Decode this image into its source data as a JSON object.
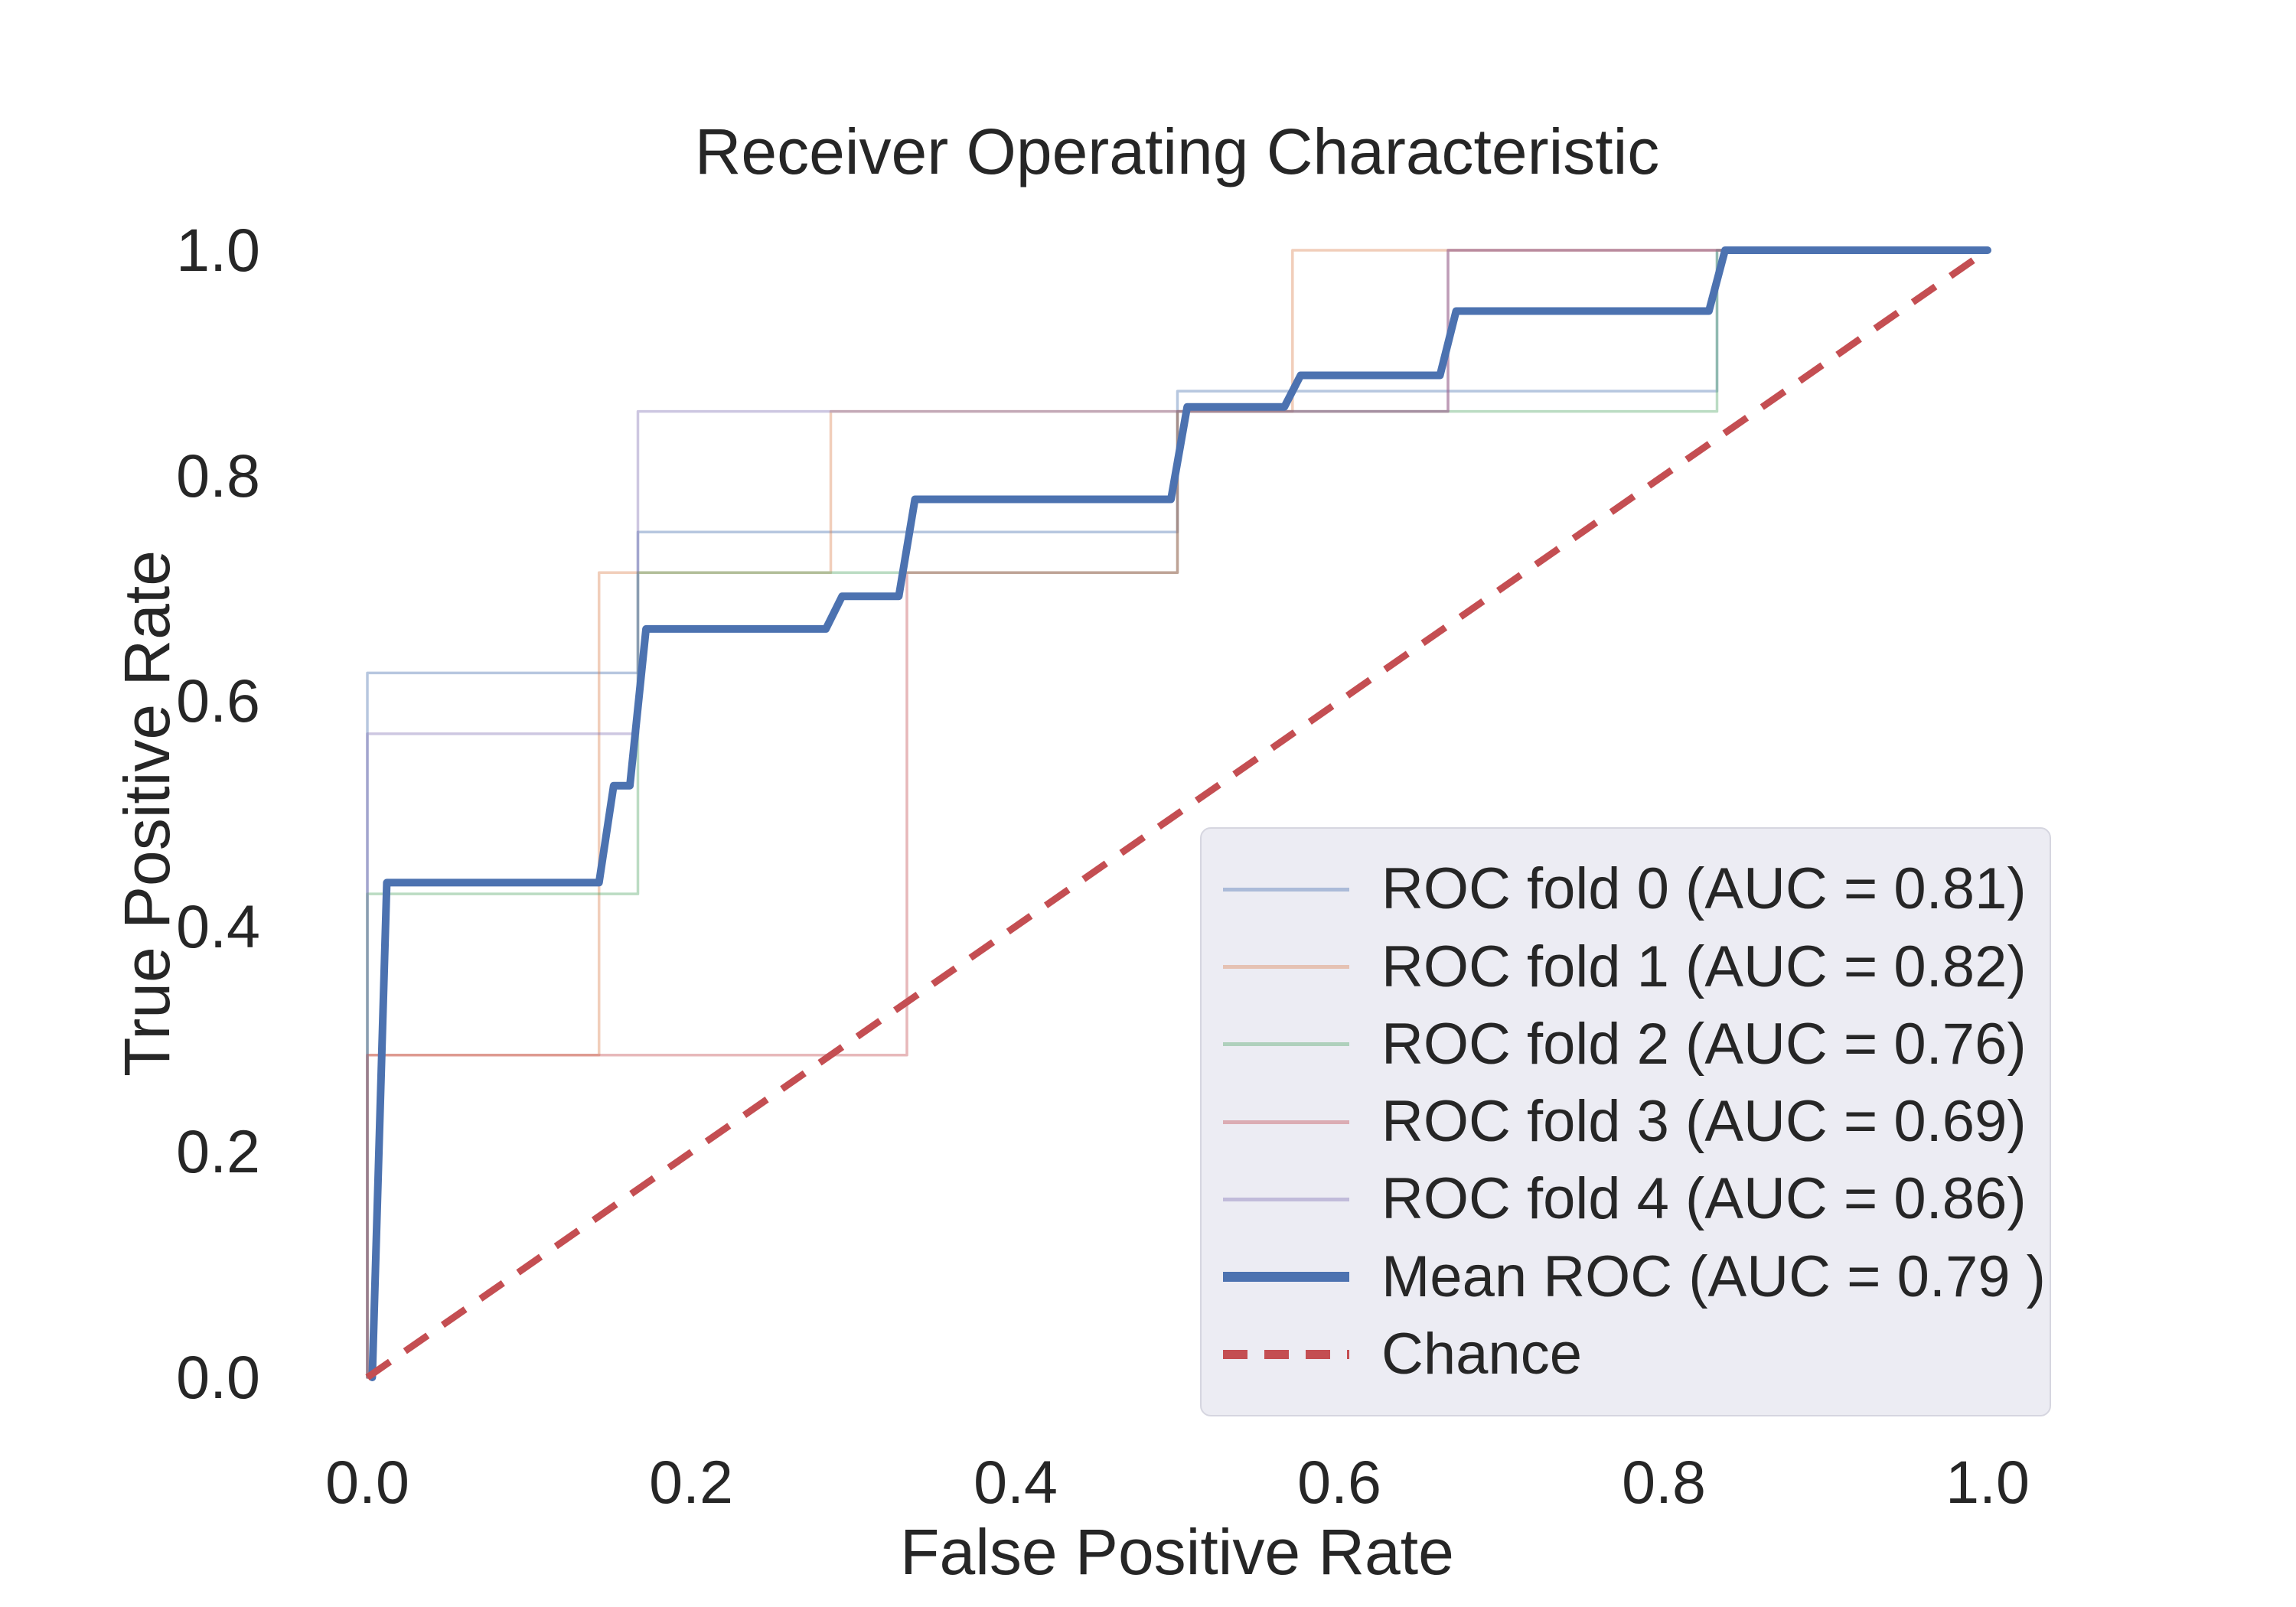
{
  "figure": {
    "background": "#FFFFFF",
    "text_color": "#262626",
    "legend_background": "#ECECF3"
  },
  "chart_data": {
    "type": "line",
    "title": "Receiver Operating Characteristic",
    "xlabel": "False Positive Rate",
    "ylabel": "True Positive Rate",
    "xlim": [
      0.0,
      1.0
    ],
    "ylim": [
      0.0,
      1.0
    ],
    "x_tick_labels": [
      "0.0",
      "0.2",
      "0.4",
      "0.6",
      "0.8",
      "1.0"
    ],
    "y_tick_labels": [
      "0.0",
      "0.2",
      "0.4",
      "0.6",
      "0.8",
      "1.0"
    ],
    "grid": false,
    "legend_position": "lower right",
    "series": [
      {
        "id": "roc-fold-0",
        "name": "ROC fold 0 (AUC = 0.81)",
        "auc": 0.81,
        "color": "#4C72B0",
        "opacity": 0.4,
        "width": 3.5,
        "style": "solid",
        "points": [
          [
            0,
            0
          ],
          [
            0,
            0.625
          ],
          [
            0.167,
            0.625
          ],
          [
            0.167,
            0.75
          ],
          [
            0.5,
            0.75
          ],
          [
            0.5,
            0.875
          ],
          [
            0.833,
            0.875
          ],
          [
            0.833,
            1
          ],
          [
            1,
            1
          ]
        ]
      },
      {
        "id": "roc-fold-1",
        "name": "ROC fold 1 (AUC = 0.82)",
        "auc": 0.82,
        "color": "#DD8452",
        "opacity": 0.4,
        "width": 3.5,
        "style": "solid",
        "points": [
          [
            0,
            0
          ],
          [
            0,
            0.286
          ],
          [
            0.143,
            0.286
          ],
          [
            0.143,
            0.714
          ],
          [
            0.286,
            0.714
          ],
          [
            0.286,
            0.857
          ],
          [
            0.571,
            0.857
          ],
          [
            0.571,
            1
          ],
          [
            1,
            1
          ]
        ]
      },
      {
        "id": "roc-fold-2",
        "name": "ROC fold 2 (AUC = 0.76)",
        "auc": 0.76,
        "color": "#55A868",
        "opacity": 0.4,
        "width": 3.5,
        "style": "solid",
        "points": [
          [
            0,
            0
          ],
          [
            0,
            0.429
          ],
          [
            0.167,
            0.429
          ],
          [
            0.167,
            0.714
          ],
          [
            0.5,
            0.714
          ],
          [
            0.5,
            0.857
          ],
          [
            0.833,
            0.857
          ],
          [
            0.833,
            1
          ],
          [
            1,
            1
          ]
        ]
      },
      {
        "id": "roc-fold-3",
        "name": "ROC fold 3 (AUC = 0.69)",
        "auc": 0.69,
        "color": "#C44E52",
        "opacity": 0.4,
        "width": 3.5,
        "style": "solid",
        "points": [
          [
            0,
            0
          ],
          [
            0,
            0.286
          ],
          [
            0.333,
            0.286
          ],
          [
            0.333,
            0.714
          ],
          [
            0.5,
            0.714
          ],
          [
            0.5,
            0.857
          ],
          [
            0.667,
            0.857
          ],
          [
            0.667,
            1
          ],
          [
            1,
            1
          ]
        ]
      },
      {
        "id": "roc-fold-4",
        "name": "ROC fold 4 (AUC = 0.86)",
        "auc": 0.86,
        "color": "#8172B3",
        "opacity": 0.4,
        "width": 3.5,
        "style": "solid",
        "points": [
          [
            0,
            0
          ],
          [
            0,
            0.571
          ],
          [
            0.167,
            0.571
          ],
          [
            0.167,
            0.857
          ],
          [
            0.667,
            0.857
          ],
          [
            0.667,
            1
          ],
          [
            1,
            1
          ]
        ]
      },
      {
        "id": "mean-roc",
        "name": "Mean ROC (AUC = 0.79 )",
        "auc": 0.79,
        "color": "#4C72B0",
        "opacity": 1,
        "width": 10,
        "style": "solid",
        "points": [
          [
            0.003,
            0
          ],
          [
            0.012,
            0.439
          ],
          [
            0.143,
            0.439
          ],
          [
            0.152,
            0.525
          ],
          [
            0.162,
            0.525
          ],
          [
            0.172,
            0.664
          ],
          [
            0.283,
            0.664
          ],
          [
            0.293,
            0.693
          ],
          [
            0.328,
            0.693
          ],
          [
            0.338,
            0.779
          ],
          [
            0.496,
            0.779
          ],
          [
            0.506,
            0.861
          ],
          [
            0.566,
            0.861
          ],
          [
            0.576,
            0.889
          ],
          [
            0.662,
            0.889
          ],
          [
            0.672,
            0.946
          ],
          [
            0.828,
            0.946
          ],
          [
            0.838,
            1
          ],
          [
            1,
            1
          ]
        ]
      },
      {
        "id": "chance",
        "name": "Chance",
        "color": "#C44E52",
        "opacity": 1,
        "width": 9,
        "style": "dashed",
        "points": [
          [
            0,
            0
          ],
          [
            1,
            1
          ]
        ]
      }
    ]
  }
}
